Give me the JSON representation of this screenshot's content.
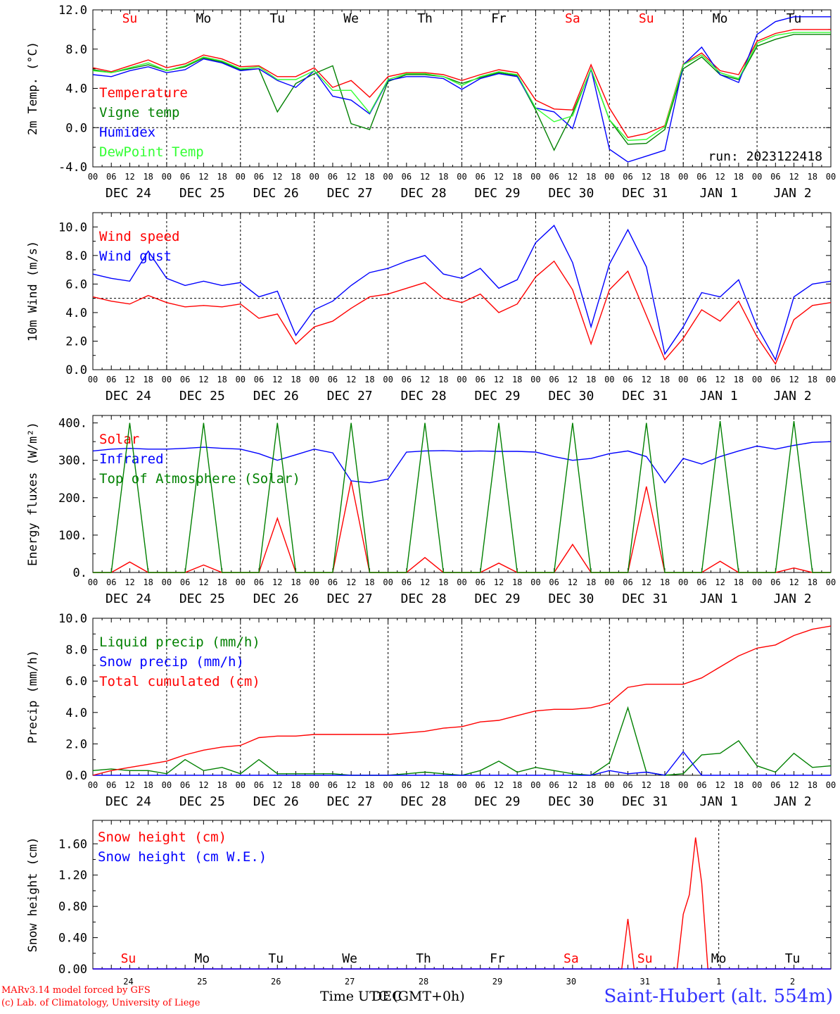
{
  "footer": {
    "credit_line1": "MARv3.14 model forced by GFS",
    "credit_line2": "(c) Lab. of Climatology, University of Liege",
    "time_axis_label": "Time UTC (GMT+0h)",
    "time_axis_overlay": "DEC",
    "station": "Saint-Hubert (alt. 554m)"
  },
  "days": [
    "Su",
    "Mo",
    "Tu",
    "We",
    "Th",
    "Fr",
    "Sa",
    "Su",
    "Mo",
    "Tu"
  ],
  "weekend_days": [
    0,
    6,
    7
  ],
  "hour_ticks": [
    "00",
    "06",
    "12",
    "18"
  ],
  "date_labels": [
    "DEC 24",
    "DEC 25",
    "DEC 26",
    "DEC 27",
    "DEC 28",
    "DEC 29",
    "DEC 30",
    "DEC 31",
    "JAN  1",
    "JAN  2"
  ],
  "bottom_date_labels": [
    "24",
    "25",
    "26",
    "27",
    "28",
    "29",
    "30",
    "31",
    "1",
    "2"
  ],
  "colors": {
    "red": "#ff0000",
    "green": "#008000",
    "blue": "#0000ff",
    "lightgreen": "#33ff33"
  },
  "chart_data": [
    {
      "id": "temp",
      "type": "line",
      "ylabel": "2m Temp. (°C)",
      "ylim": [
        -4,
        12
      ],
      "yticks": [
        "-4.0",
        "0.0",
        "4.0",
        "8.0",
        "12.0"
      ],
      "ytick_values": [
        -4,
        0,
        4,
        8,
        12
      ],
      "ref_line": 0,
      "annotation": "run: 2023122418",
      "x_hours": [
        0,
        6,
        12,
        18,
        24,
        30,
        36,
        42,
        48,
        54,
        60,
        66,
        72,
        78,
        84,
        90,
        96,
        102,
        108,
        114,
        120,
        126,
        132,
        138,
        144,
        150,
        156,
        162,
        168,
        174,
        180,
        186,
        192,
        198,
        204,
        210,
        216,
        222,
        228,
        234,
        240
      ],
      "series": [
        {
          "name": "Temperature",
          "color": "red",
          "values": [
            6.1,
            5.7,
            6.3,
            6.9,
            6.1,
            6.5,
            7.4,
            7.0,
            6.2,
            6.3,
            5.2,
            5.2,
            6.1,
            4.1,
            4.8,
            3.1,
            5.2,
            5.6,
            5.6,
            5.4,
            4.8,
            5.4,
            5.9,
            5.6,
            2.8,
            1.9,
            1.8,
            6.4,
            2.0,
            -1.0,
            -0.6,
            0.2,
            6.5,
            7.6,
            5.8,
            5.4,
            8.8,
            9.6,
            10.0,
            10.0,
            10.0
          ]
        },
        {
          "name": "Vigne temp",
          "color": "green",
          "values": [
            5.9,
            5.6,
            6.0,
            6.4,
            5.8,
            6.2,
            7.1,
            6.7,
            5.9,
            6.0,
            1.6,
            4.5,
            5.5,
            6.3,
            0.4,
            -0.2,
            4.7,
            5.4,
            5.4,
            5.2,
            4.5,
            5.1,
            5.6,
            5.3,
            1.8,
            -2.3,
            1.5,
            5.9,
            0.8,
            -1.7,
            -1.6,
            -0.2,
            6.0,
            7.2,
            5.4,
            4.9,
            8.3,
            9.0,
            9.5,
            9.5,
            9.5
          ]
        },
        {
          "name": "Humidex",
          "color": "blue",
          "values": [
            5.4,
            5.2,
            5.8,
            6.2,
            5.6,
            5.9,
            7.0,
            6.6,
            5.8,
            6.0,
            4.8,
            4.1,
            5.8,
            3.2,
            2.8,
            1.4,
            4.8,
            5.2,
            5.2,
            5.0,
            3.9,
            5.0,
            5.5,
            5.2,
            2.0,
            1.6,
            -0.1,
            6.0,
            -2.2,
            -3.5,
            -2.9,
            -2.3,
            6.4,
            8.2,
            5.4,
            4.6,
            9.5,
            10.8,
            11.3,
            11.3,
            11.3
          ]
        },
        {
          "name": "DewPoint Temp",
          "color": "lightgreen",
          "values": [
            5.8,
            5.6,
            6.1,
            6.6,
            5.8,
            6.3,
            7.2,
            6.8,
            6.0,
            6.2,
            4.9,
            4.9,
            5.8,
            3.8,
            3.8,
            1.5,
            4.9,
            5.5,
            5.5,
            5.2,
            4.3,
            5.2,
            5.7,
            5.4,
            2.0,
            0.6,
            1.2,
            6.0,
            0.8,
            -1.3,
            -1.2,
            0.1,
            6.4,
            7.4,
            5.6,
            5.0,
            8.6,
            9.4,
            9.7,
            9.7,
            9.7
          ]
        }
      ]
    },
    {
      "id": "wind",
      "type": "line",
      "ylabel": "10m Wind (m/s)",
      "ylim": [
        0,
        11
      ],
      "yticks": [
        "0.0",
        "2.0",
        "4.0",
        "6.0",
        "8.0",
        "10.0"
      ],
      "ytick_values": [
        0,
        2,
        4,
        6,
        8,
        10
      ],
      "ref_line": 5,
      "x_hours": [
        0,
        6,
        12,
        18,
        24,
        30,
        36,
        42,
        48,
        54,
        60,
        66,
        72,
        78,
        84,
        90,
        96,
        102,
        108,
        114,
        120,
        126,
        132,
        138,
        144,
        150,
        156,
        162,
        168,
        174,
        180,
        186,
        192,
        198,
        204,
        210,
        216,
        222,
        228,
        234,
        240
      ],
      "series": [
        {
          "name": "Wind speed",
          "color": "red",
          "values": [
            5.1,
            4.8,
            4.6,
            5.2,
            4.7,
            4.4,
            4.5,
            4.4,
            4.6,
            3.6,
            3.9,
            1.8,
            3.0,
            3.4,
            4.3,
            5.1,
            5.3,
            5.7,
            6.1,
            5.0,
            4.7,
            5.3,
            4.0,
            4.6,
            6.5,
            7.6,
            5.6,
            1.8,
            5.6,
            6.9,
            3.8,
            0.7,
            2.2,
            4.2,
            3.4,
            4.8,
            2.3,
            0.4,
            3.5,
            4.5,
            4.7
          ]
        },
        {
          "name": "Wind gust",
          "color": "blue",
          "values": [
            6.7,
            6.4,
            6.2,
            8.3,
            6.4,
            5.9,
            6.2,
            5.9,
            6.1,
            5.1,
            5.5,
            2.4,
            4.2,
            4.8,
            5.9,
            6.8,
            7.1,
            7.6,
            8.0,
            6.7,
            6.4,
            7.1,
            5.7,
            6.3,
            8.9,
            10.1,
            7.5,
            3.0,
            7.4,
            9.8,
            7.2,
            1.1,
            3.0,
            5.4,
            5.1,
            6.3,
            3.0,
            0.7,
            5.1,
            6.0,
            6.2
          ]
        }
      ]
    },
    {
      "id": "energy",
      "type": "line",
      "ylabel": "Energy fluxes (W/m²)",
      "ylim": [
        0,
        420
      ],
      "yticks": [
        "0.",
        "100.",
        "200.",
        "300.",
        "400."
      ],
      "ytick_values": [
        0,
        100,
        200,
        300,
        400
      ],
      "x_hours": [
        0,
        6,
        12,
        18,
        24,
        30,
        36,
        42,
        48,
        54,
        60,
        66,
        72,
        78,
        84,
        90,
        96,
        102,
        108,
        114,
        120,
        126,
        132,
        138,
        144,
        150,
        156,
        162,
        168,
        174,
        180,
        186,
        192,
        198,
        204,
        210,
        216,
        222,
        228,
        234,
        240
      ],
      "series": [
        {
          "name": "Solar",
          "color": "red",
          "values": [
            0,
            0,
            28,
            0,
            0,
            0,
            20,
            0,
            0,
            0,
            145,
            0,
            0,
            0,
            245,
            0,
            0,
            0,
            40,
            0,
            0,
            0,
            25,
            0,
            0,
            0,
            75,
            0,
            0,
            0,
            230,
            0,
            0,
            0,
            30,
            0,
            0,
            0,
            12,
            0,
            0
          ]
        },
        {
          "name": "Infrared",
          "color": "blue",
          "values": [
            325,
            330,
            332,
            330,
            330,
            332,
            335,
            332,
            330,
            318,
            300,
            315,
            330,
            320,
            245,
            240,
            250,
            322,
            325,
            326,
            324,
            325,
            324,
            324,
            322,
            310,
            300,
            305,
            318,
            325,
            310,
            240,
            305,
            290,
            310,
            325,
            338,
            330,
            340,
            348,
            350
          ]
        },
        {
          "name": "Top of Atmosphere (Solar)",
          "color": "green",
          "values": [
            0,
            0,
            400,
            0,
            0,
            0,
            400,
            0,
            0,
            0,
            400,
            0,
            0,
            0,
            400,
            0,
            0,
            0,
            400,
            0,
            0,
            0,
            400,
            0,
            0,
            0,
            400,
            0,
            0,
            0,
            400,
            0,
            0,
            0,
            405,
            0,
            0,
            0,
            405,
            0,
            0
          ]
        }
      ]
    },
    {
      "id": "precip",
      "type": "line",
      "ylabel": "Precip (mm/h)",
      "ylim": [
        0,
        10
      ],
      "yticks": [
        "0.0",
        "2.0",
        "4.0",
        "6.0",
        "8.0",
        "10.0"
      ],
      "ytick_values": [
        0,
        2,
        4,
        6,
        8,
        10
      ],
      "x_hours": [
        0,
        6,
        12,
        18,
        24,
        30,
        36,
        42,
        48,
        54,
        60,
        66,
        72,
        78,
        84,
        90,
        96,
        102,
        108,
        114,
        120,
        126,
        132,
        138,
        144,
        150,
        156,
        162,
        168,
        174,
        180,
        186,
        192,
        198,
        204,
        210,
        216,
        222,
        228,
        234,
        240
      ],
      "series": [
        {
          "name": "Liquid precip (mm/h)",
          "color": "green",
          "values": [
            0.3,
            0.4,
            0.3,
            0.3,
            0.1,
            1.0,
            0.3,
            0.5,
            0.1,
            1.0,
            0.1,
            0.1,
            0.1,
            0.1,
            0.0,
            0.0,
            0.0,
            0.1,
            0.2,
            0.1,
            0.0,
            0.3,
            0.9,
            0.2,
            0.5,
            0.3,
            0.1,
            0.0,
            0.8,
            4.3,
            0.2,
            0.0,
            0.1,
            1.3,
            1.4,
            2.2,
            0.6,
            0.2,
            1.4,
            0.5,
            0.6
          ]
        },
        {
          "name": "Snow precip (mm/h)",
          "color": "blue",
          "values": [
            0,
            0,
            0,
            0,
            0,
            0,
            0,
            0,
            0,
            0,
            0,
            0,
            0,
            0,
            0,
            0,
            0,
            0,
            0,
            0,
            0,
            0,
            0,
            0,
            0,
            0,
            0,
            0,
            0.3,
            0.1,
            0.2,
            0,
            1.5,
            0,
            0,
            0,
            0,
            0,
            0,
            0,
            0
          ]
        },
        {
          "name": "Total cumulated (cm)",
          "color": "red",
          "values": [
            0.0,
            0.3,
            0.5,
            0.7,
            0.9,
            1.3,
            1.6,
            1.8,
            1.9,
            2.4,
            2.5,
            2.5,
            2.6,
            2.6,
            2.6,
            2.6,
            2.6,
            2.7,
            2.8,
            3.0,
            3.1,
            3.4,
            3.5,
            3.8,
            4.1,
            4.2,
            4.2,
            4.3,
            4.6,
            5.6,
            5.8,
            5.8,
            5.8,
            6.2,
            6.9,
            7.6,
            8.1,
            8.3,
            8.9,
            9.3,
            9.5
          ]
        }
      ]
    },
    {
      "id": "snow",
      "type": "line",
      "ylabel": "Snow height (cm)",
      "ylim": [
        0,
        1.9
      ],
      "yticks": [
        "0.00",
        "0.40",
        "0.80",
        "1.20",
        "1.60"
      ],
      "ytick_values": [
        0,
        0.4,
        0.8,
        1.2,
        1.6
      ],
      "x_hours": [
        0,
        168,
        172,
        174,
        176,
        178,
        186,
        190,
        192,
        194,
        196,
        198,
        200,
        240
      ],
      "series": [
        {
          "name": "Snow height (cm)",
          "color": "red",
          "values": [
            0,
            0,
            0,
            0.64,
            0,
            0,
            0,
            0,
            0.7,
            0.95,
            1.68,
            1.1,
            0,
            0
          ]
        },
        {
          "name": "Snow height (cm W.E.)",
          "color": "blue",
          "values": [
            0,
            0,
            0,
            0,
            0,
            0,
            0,
            0,
            0,
            0,
            0,
            0,
            0,
            0
          ]
        }
      ]
    }
  ]
}
